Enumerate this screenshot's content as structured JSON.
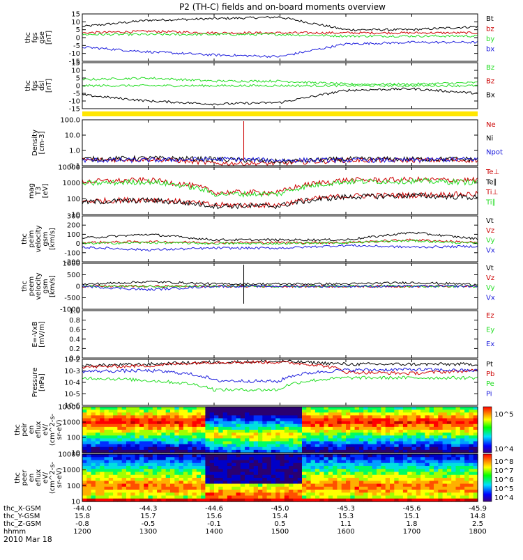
{
  "title": "P2 (TH-C) fields and on-board moments overview",
  "date": "2010 Mar 18",
  "colors": {
    "black": "#000000",
    "red": "#cc0000",
    "green": "#22dd22",
    "blue": "#1a1adc",
    "yellow": "#ffe600"
  },
  "panels": [
    {
      "id": "fgs-gse",
      "ylabel": [
        "thc",
        "fgs",
        "gse",
        "[nT]"
      ],
      "ylim": [
        -15,
        15
      ],
      "yticks": [
        "15",
        "10",
        "5",
        "0",
        "-5",
        "-10",
        "-15"
      ],
      "legend": [
        {
          "name": "Bt",
          "color": "black"
        },
        {
          "name": "bz",
          "color": "red"
        },
        {
          "name": "by",
          "color": "green"
        },
        {
          "name": "bx",
          "color": "blue"
        }
      ]
    },
    {
      "id": "fgs-dsl",
      "ylabel": [
        "thc",
        "fgs",
        "dsl",
        "[nT]"
      ],
      "ylim": [
        -15,
        15
      ],
      "yticks": [
        "15",
        "10",
        "5",
        "0",
        "-5",
        "-10",
        "-15"
      ],
      "legend": [
        {
          "name": "Bz",
          "color": "green"
        },
        {
          "name": "Bz",
          "color": "red"
        },
        {
          "name": "Bx",
          "color": "black"
        }
      ]
    },
    {
      "id": "density",
      "ylabel": [
        "Density",
        "[cm-3]"
      ],
      "scale": "log",
      "ylim": [
        0.1,
        200
      ],
      "yticks": [
        "100.0",
        "10.0",
        "1.0",
        "0.1"
      ],
      "legend": [
        {
          "name": "Ne",
          "color": "red"
        },
        {
          "name": "Ni",
          "color": "black"
        },
        {
          "name": "Npot",
          "color": "blue"
        }
      ]
    },
    {
      "id": "temperature",
      "ylabel": [
        "mag",
        "T3",
        "[eV]"
      ],
      "scale": "log",
      "ylim": [
        10,
        10000
      ],
      "yticks": [
        "10000",
        "1000",
        "100",
        "10"
      ],
      "legend": [
        {
          "name": "Te⊥",
          "color": "red"
        },
        {
          "name": "Te∥",
          "color": "black"
        },
        {
          "name": "Ti⊥",
          "color": "red"
        },
        {
          "name": "Ti∥",
          "color": "green"
        }
      ]
    },
    {
      "id": "peim-velocity",
      "ylabel": [
        "thc",
        "peim",
        "velocity",
        "gsm",
        "[km/s]"
      ],
      "ylim": [
        -200,
        300
      ],
      "yticks": [
        "300",
        "200",
        "100",
        "0",
        "-100",
        "-200"
      ],
      "legend": [
        {
          "name": "Vt",
          "color": "black"
        },
        {
          "name": "Vz",
          "color": "red"
        },
        {
          "name": "Vy",
          "color": "green"
        },
        {
          "name": "Vx",
          "color": "blue"
        }
      ]
    },
    {
      "id": "peem-velocity",
      "ylabel": [
        "thc",
        "peem",
        "velocity",
        "gsm",
        "[km/s]"
      ],
      "ylim": [
        -1000,
        1000
      ],
      "yticks": [
        "1000",
        "500",
        "0",
        "-500",
        "-1000"
      ],
      "legend": [
        {
          "name": "Vt",
          "color": "black"
        },
        {
          "name": "Vz",
          "color": "red"
        },
        {
          "name": "Vy",
          "color": "green"
        },
        {
          "name": "Vx",
          "color": "blue"
        }
      ]
    },
    {
      "id": "e-vxb",
      "ylabel": [
        "E=-VxB",
        "[mV/m]"
      ],
      "ylim": [
        0,
        1
      ],
      "yticks": [
        "1.0",
        "0.8",
        "0.6",
        "0.4",
        "0.2",
        "0.0"
      ],
      "legend": [
        {
          "name": "Ez",
          "color": "red"
        },
        {
          "name": "Ey",
          "color": "green"
        },
        {
          "name": "Ex",
          "color": "blue"
        }
      ]
    },
    {
      "id": "pressure",
      "ylabel": [
        "Pressure",
        "[nPa]"
      ],
      "scale": "log",
      "ylim": [
        1e-06,
        0.1
      ],
      "yticks": [
        "10-2",
        "10-3",
        "10-4",
        "10-5",
        "10-6"
      ],
      "legend": [
        {
          "name": "Pt",
          "color": "black"
        },
        {
          "name": "Pb",
          "color": "red"
        },
        {
          "name": "Pe",
          "color": "green"
        },
        {
          "name": "Pi",
          "color": "blue"
        }
      ]
    },
    {
      "id": "peir-spec",
      "ylabel": [
        "thc",
        "peir",
        "en",
        "eflux",
        "eV/",
        "(cm^2-s-",
        "sr-eV)"
      ],
      "yticks": [
        "10000",
        "1000",
        "100",
        "10"
      ],
      "colorbar": [
        "10^5",
        "10^4"
      ]
    },
    {
      "id": "peer-spec",
      "ylabel": [
        "thc",
        "peer",
        "en",
        "eflux",
        "eV/",
        "(cm^2-s-",
        "sr-eV)"
      ],
      "yticks": [
        "10000",
        "1000",
        "100",
        "10"
      ],
      "colorbar": [
        "10^8",
        "10^7",
        "10^6",
        "10^5",
        "10^4"
      ]
    }
  ],
  "xaxis": {
    "rows": [
      {
        "label": "thc_X-GSM",
        "values": [
          "-44.0",
          "-44.3",
          "-44.6",
          "-45.0",
          "-45.3",
          "-45.6",
          "-45.9"
        ]
      },
      {
        "label": "thc_Y-GSM",
        "values": [
          "15.8",
          "15.7",
          "15.6",
          "15.4",
          "15.3",
          "15.1",
          "14.8"
        ]
      },
      {
        "label": "thc_Z-GSM",
        "values": [
          "-0.8",
          "-0.5",
          "-0.1",
          "0.5",
          "1.1",
          "1.8",
          "2.5"
        ]
      },
      {
        "label": "hhmm",
        "values": [
          "1200",
          "1300",
          "1400",
          "1500",
          "1600",
          "1700",
          "1800"
        ]
      }
    ]
  },
  "chart_data": [
    {
      "type": "line",
      "panel": "fgs-gse",
      "x": [
        "1200",
        "1300",
        "1400",
        "1500",
        "1600",
        "1700",
        "1800"
      ],
      "ylim": [
        -15,
        15
      ],
      "series": [
        {
          "name": "Bt",
          "values": [
            7,
            11,
            12,
            13,
            5,
            5,
            7
          ]
        },
        {
          "name": "bz",
          "values": [
            3,
            4,
            3,
            3,
            3,
            3,
            3
          ]
        },
        {
          "name": "by",
          "values": [
            2,
            2,
            2,
            2,
            1,
            1,
            1
          ]
        },
        {
          "name": "bx",
          "values": [
            -6,
            -9,
            -11,
            -12,
            -4,
            -3,
            -3
          ]
        }
      ]
    },
    {
      "type": "line",
      "panel": "fgs-dsl",
      "x": [
        "1200",
        "1300",
        "1400",
        "1500",
        "1600",
        "1700",
        "1800"
      ],
      "ylim": [
        -15,
        15
      ],
      "series": [
        {
          "name": "Bz",
          "values": [
            4,
            5,
            3,
            3,
            1,
            1,
            2
          ]
        },
        {
          "name": "Bz",
          "values": [
            0,
            0,
            0,
            0,
            0,
            0,
            0
          ]
        },
        {
          "name": "Bx",
          "values": [
            -6,
            -10,
            -12,
            -11,
            -3,
            -2,
            -5
          ]
        }
      ]
    },
    {
      "type": "line",
      "panel": "density",
      "x": [
        "1200",
        "1300",
        "1400",
        "1500",
        "1600",
        "1700",
        "1800"
      ],
      "ylim": [
        0.1,
        200
      ],
      "series": [
        {
          "name": "Ne",
          "values": [
            0.25,
            0.3,
            0.15,
            0.15,
            0.25,
            0.25,
            0.25
          ]
        },
        {
          "name": "Ni",
          "values": [
            0.3,
            0.35,
            0.3,
            0.2,
            0.3,
            0.3,
            0.3
          ]
        },
        {
          "name": "Npot",
          "values": [
            0.25,
            0.25,
            0.3,
            0.25,
            0.25,
            0.25,
            0.3
          ]
        }
      ]
    },
    {
      "type": "line",
      "panel": "temperature",
      "x": [
        "1200",
        "1300",
        "1400",
        "1500",
        "1600",
        "1700",
        "1800"
      ],
      "ylim": [
        10,
        10000
      ],
      "series": [
        {
          "name": "Te⊥",
          "values": [
            70,
            90,
            40,
            40,
            150,
            170,
            200
          ]
        },
        {
          "name": "Te∥",
          "values": [
            60,
            80,
            35,
            35,
            130,
            160,
            120
          ]
        },
        {
          "name": "Ti⊥",
          "values": [
            1200,
            1500,
            250,
            250,
            1500,
            1600,
            1500
          ]
        },
        {
          "name": "Ti∥",
          "values": [
            900,
            1200,
            200,
            200,
            1200,
            1300,
            1100
          ]
        }
      ]
    },
    {
      "type": "line",
      "panel": "peim-velocity",
      "x": [
        "1200",
        "1300",
        "1400",
        "1500",
        "1600",
        "1700",
        "1800"
      ],
      "ylim": [
        -200,
        300
      ],
      "series": [
        {
          "name": "Vt",
          "values": [
            60,
            100,
            40,
            40,
            40,
            120,
            50
          ]
        },
        {
          "name": "Vz",
          "values": [
            10,
            20,
            10,
            10,
            10,
            40,
            10
          ]
        },
        {
          "name": "Vy",
          "values": [
            0,
            10,
            0,
            0,
            10,
            30,
            0
          ]
        },
        {
          "name": "Vx",
          "values": [
            -40,
            -70,
            -50,
            -50,
            -20,
            -40,
            -30
          ]
        }
      ]
    },
    {
      "type": "line",
      "panel": "peem-velocity",
      "x": [
        "1200",
        "1300",
        "1400",
        "1500",
        "1600",
        "1700",
        "1800"
      ],
      "ylim": [
        -1000,
        1000
      ],
      "series": [
        {
          "name": "Vt",
          "values": [
            80,
            200,
            100,
            100,
            100,
            160,
            80
          ]
        },
        {
          "name": "Vz",
          "values": [
            0,
            0,
            0,
            0,
            0,
            0,
            0
          ]
        },
        {
          "name": "Vy",
          "values": [
            0,
            0,
            0,
            0,
            0,
            0,
            0
          ]
        },
        {
          "name": "Vx",
          "values": [
            0,
            -150,
            0,
            0,
            0,
            0,
            0
          ]
        }
      ]
    },
    {
      "type": "line",
      "panel": "pressure",
      "x": [
        "1200",
        "1300",
        "1400",
        "1500",
        "1600",
        "1700",
        "1800"
      ],
      "ylim": [
        1e-06,
        0.1
      ],
      "series": [
        {
          "name": "Pt",
          "values": [
            0.02,
            0.03,
            0.05,
            0.06,
            0.03,
            0.03,
            0.03
          ]
        },
        {
          "name": "Pb",
          "values": [
            0.015,
            0.02,
            0.05,
            0.05,
            0.004,
            0.003,
            0.006
          ]
        },
        {
          "name": "Pe",
          "values": [
            0.001,
            0.0005,
            5e-05,
            5e-05,
            0.001,
            0.001,
            0.001
          ]
        },
        {
          "name": "Pi",
          "values": [
            0.005,
            0.006,
            0.0005,
            0.0004,
            0.007,
            0.008,
            0.006
          ]
        }
      ]
    },
    {
      "type": "heatmap",
      "panel": "peir-spec",
      "x": [
        "1200",
        "1300",
        "1400",
        "1500",
        "1600",
        "1700",
        "1800"
      ],
      "yrange": [
        10,
        20000
      ]
    },
    {
      "type": "heatmap",
      "panel": "peer-spec",
      "x": [
        "1200",
        "1300",
        "1400",
        "1500",
        "1600",
        "1700",
        "1800"
      ],
      "yrange": [
        10,
        20000
      ]
    }
  ]
}
